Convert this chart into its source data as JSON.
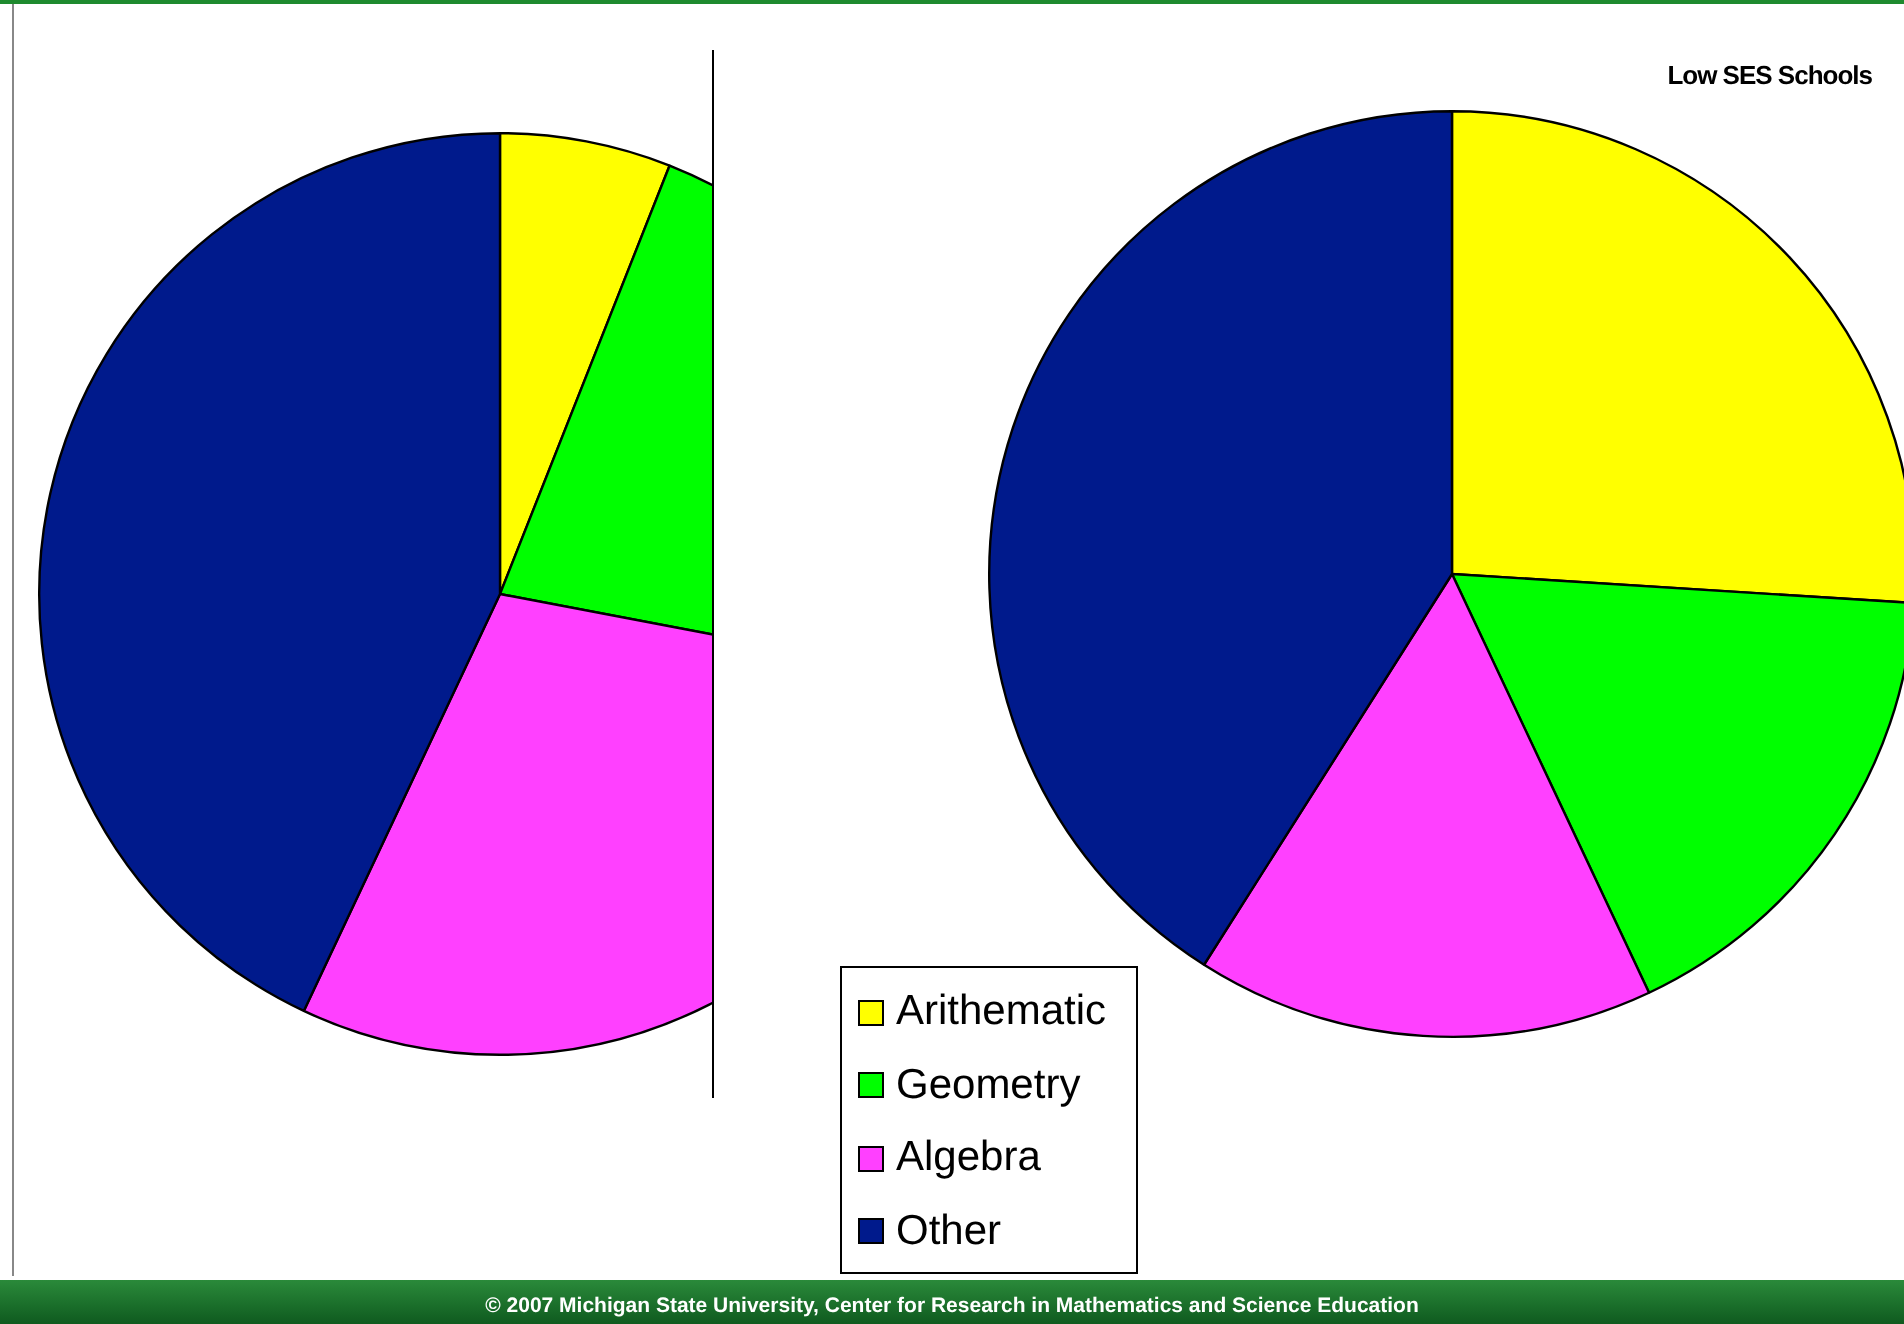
{
  "chart_data": [
    {
      "type": "pie",
      "categories": [
        null,
        null,
        null,
        null
      ],
      "values": [
        6,
        22,
        29,
        43
      ],
      "colors": [
        "#ffff00",
        "#00ff00",
        "#ff40ff",
        "#001a8c"
      ],
      "legend": false
    },
    {
      "type": "pie",
      "title": "Low SES Schools",
      "categories": [
        "Arithematic",
        "Geometry",
        "Algebra",
        "Other"
      ],
      "values": [
        26,
        17,
        16,
        41
      ],
      "colors": [
        "#ffff00",
        "#00ff00",
        "#ff40ff",
        "#001a8c"
      ],
      "legend": "bottom left",
      "annotations": [
        "© 2007 Michigan State University,  Center for Research in Mathematics and Science Education"
      ]
    }
  ]
}
